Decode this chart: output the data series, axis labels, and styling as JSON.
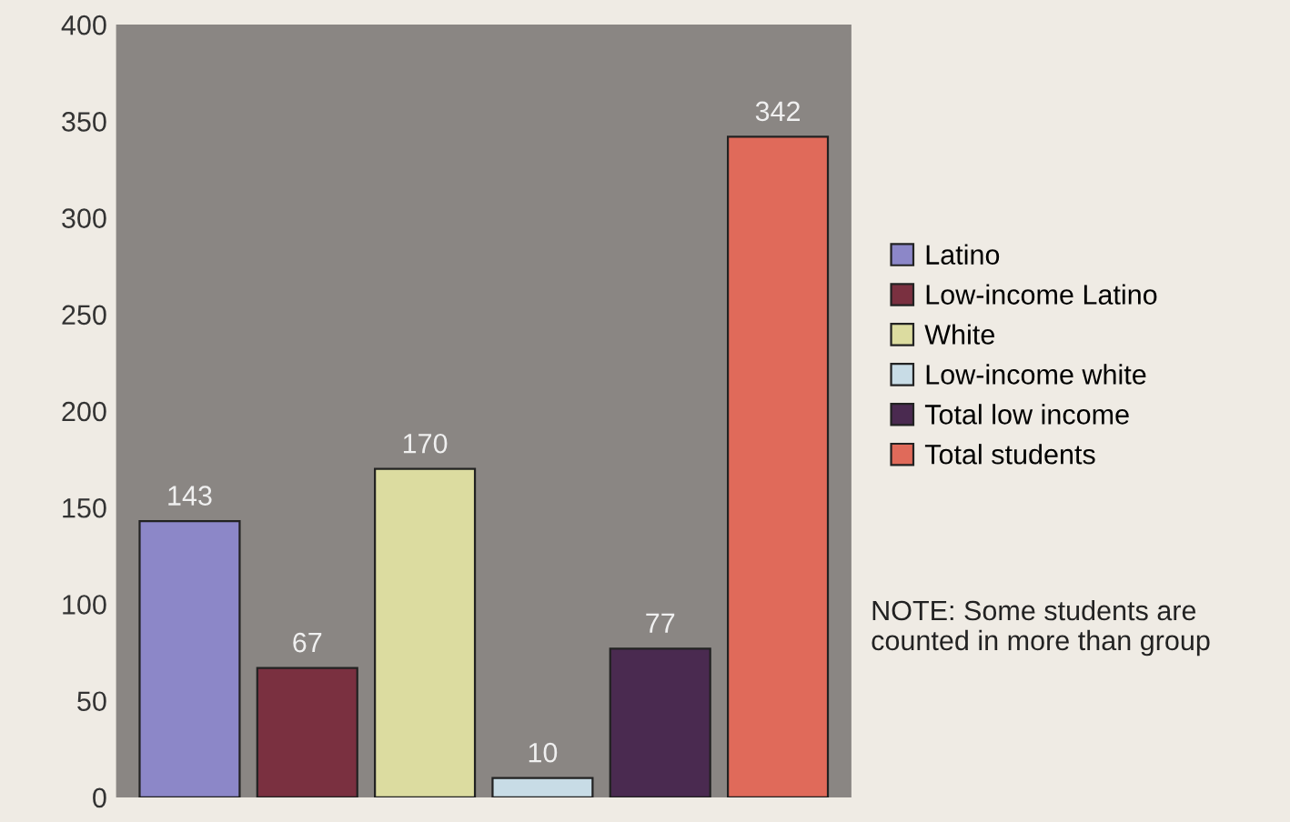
{
  "chart_data": {
    "type": "bar",
    "categories": [
      null
    ],
    "series": [
      {
        "name": "Latino",
        "color": "#8c87c8",
        "values": [
          143
        ]
      },
      {
        "name": "Low-income Latino",
        "color": "#7a3040",
        "values": [
          67
        ]
      },
      {
        "name": "White",
        "color": "#dcdca0",
        "values": [
          170
        ]
      },
      {
        "name": "Low-income white",
        "color": "#c8dce6",
        "values": [
          10
        ]
      },
      {
        "name": "Total low income",
        "color": "#4a2a50",
        "values": [
          77
        ]
      },
      {
        "name": "Total students",
        "color": "#e06a5a",
        "values": [
          342
        ]
      }
    ],
    "ylim": [
      0,
      400
    ],
    "yticks": [
      0,
      50,
      100,
      150,
      200,
      250,
      300,
      350,
      400
    ],
    "data_labels": true,
    "legend": "right",
    "grid": false,
    "annotations": [
      "NOTE: Some students are counted in more than group"
    ]
  }
}
